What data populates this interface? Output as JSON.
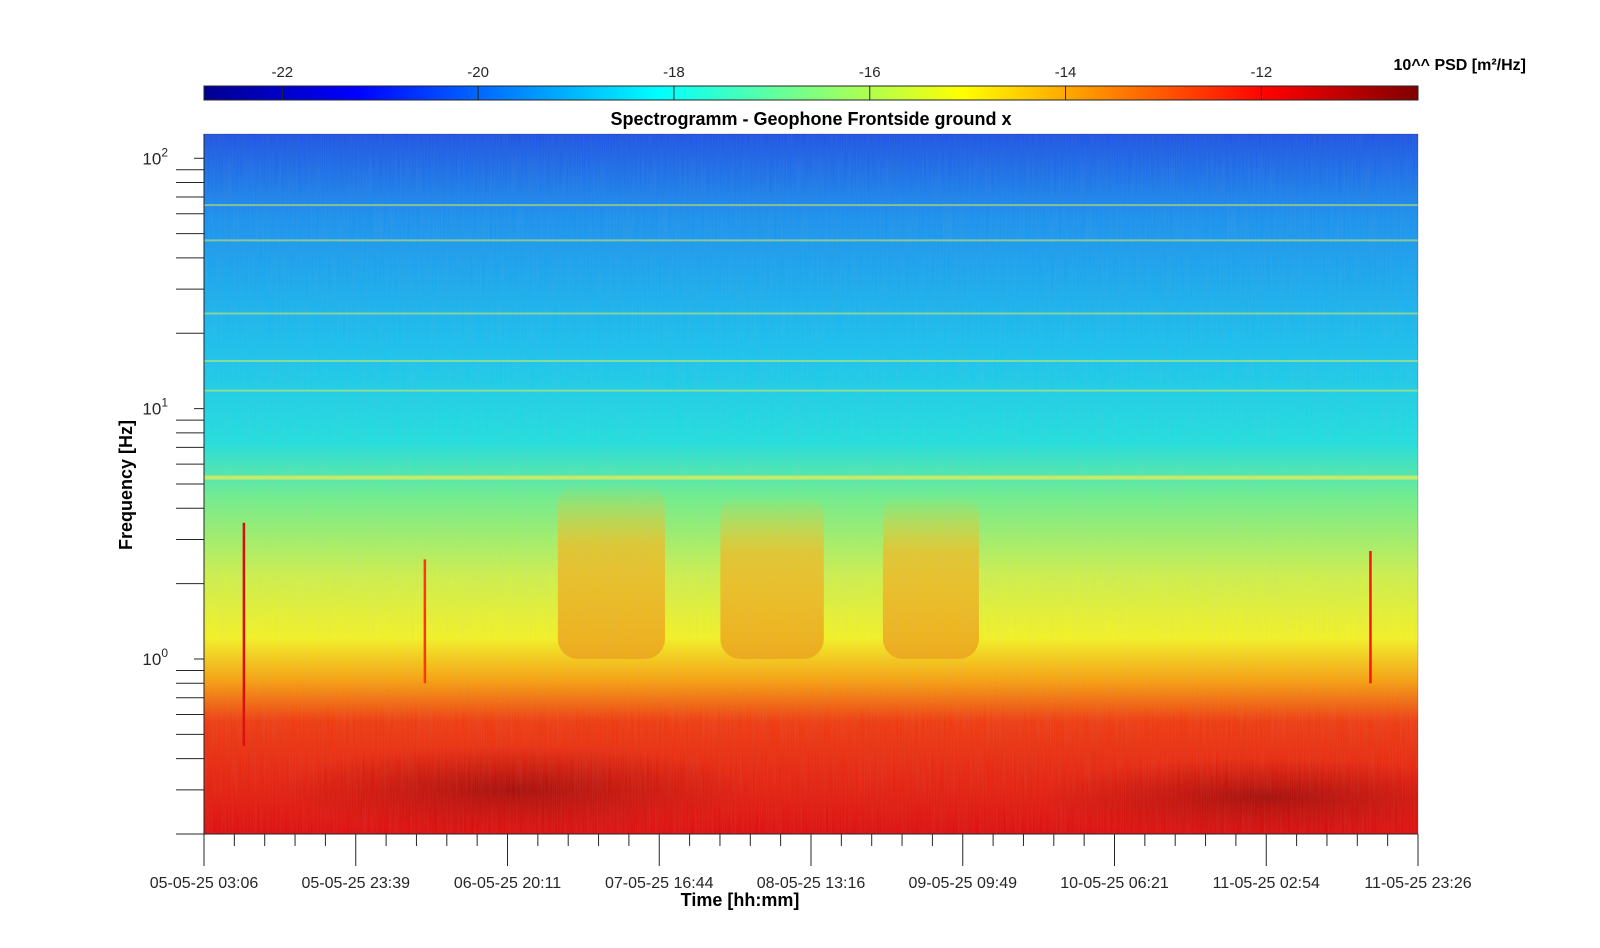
{
  "chart_data": {
    "type": "heatmap",
    "title": "Spectrogramm - Geophone Frontside ground x",
    "xlabel": "Time [hh:mm]",
    "ylabel": "Frequency [Hz]",
    "y_scale": "log",
    "ylim": [
      0.2,
      125
    ],
    "xlim": [
      "05-05-25 03:06",
      "11-05-25 23:26"
    ],
    "x_tick_labels": [
      "05-05-25 03:06",
      "05-05-25 23:39",
      "06-05-25 20:11",
      "07-05-25 16:44",
      "08-05-25 13:16",
      "09-05-25 09:49",
      "10-05-25 06:21",
      "11-05-25 02:54",
      "11-05-25 23:26"
    ],
    "y_ticks": [
      {
        "base": "10",
        "exp": "0",
        "value": 1
      },
      {
        "base": "10",
        "exp": "1",
        "value": 10
      },
      {
        "base": "10",
        "exp": "2",
        "value": 100
      }
    ],
    "colorbar": {
      "label": "10^^ PSD [m²/Hz]",
      "range": [
        -22.8,
        -10.4
      ],
      "ticks": [
        "-22",
        "-20",
        "-18",
        "-16",
        "-14",
        "-12"
      ],
      "tick_values": [
        -22,
        -20,
        -18,
        -16,
        -14,
        -12
      ],
      "colormap": "jet",
      "location": "top"
    },
    "frequency_bands": [
      {
        "f_high": 125,
        "f_low": 60,
        "log10_psd": -21.0
      },
      {
        "f_high": 60,
        "f_low": 30,
        "log10_psd": -19.8
      },
      {
        "f_high": 30,
        "f_low": 15,
        "log10_psd": -18.8
      },
      {
        "f_high": 15,
        "f_low": 7,
        "log10_psd": -18.0
      },
      {
        "f_high": 7,
        "f_low": 3,
        "log10_psd": -16.8
      },
      {
        "f_high": 3,
        "f_low": 1.2,
        "log10_psd": -15.2
      },
      {
        "f_high": 1.2,
        "f_low": 0.7,
        "log10_psd": -14.5
      },
      {
        "f_high": 0.7,
        "f_low": 0.2,
        "log10_psd": -12.3
      }
    ],
    "persistent_lines_hz": [
      5.3,
      11.8,
      15.5,
      24,
      47,
      65
    ],
    "daytime_bursts": [
      {
        "start": "07-05-25 03:00",
        "end": "07-05-25 17:30",
        "f_low": 1.0,
        "f_high": 5,
        "log10_psd": -14.8
      },
      {
        "start": "08-05-25 01:00",
        "end": "08-05-25 15:00",
        "f_low": 1.0,
        "f_high": 4.5,
        "log10_psd": -14.8
      },
      {
        "start": "08-05-25 23:00",
        "end": "09-05-25 12:00",
        "f_low": 1.0,
        "f_high": 4.5,
        "log10_psd": -14.8
      }
    ],
    "transients": [
      {
        "time": "05-05-25 08:30",
        "f_low": 0.45,
        "f_high": 3.5,
        "log10_psd": -11.5
      },
      {
        "time": "06-05-25 09:00",
        "f_low": 0.8,
        "f_high": 2.5,
        "log10_psd": -12.5
      },
      {
        "time": "11-05-25 17:00",
        "f_low": 0.8,
        "f_high": 2.7,
        "log10_psd": -12.0
      }
    ],
    "colors": {
      "axis": "#262626",
      "title": "#000000",
      "colormap_stops": [
        "#00008f",
        "#0000ff",
        "#00ffff",
        "#ffff00",
        "#ff0000",
        "#800000"
      ]
    }
  }
}
